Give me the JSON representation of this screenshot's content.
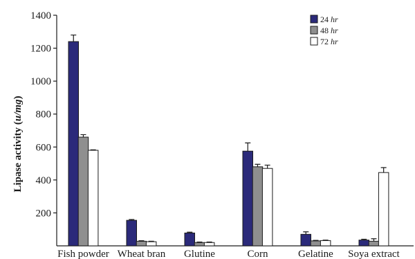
{
  "chart_data": {
    "type": "bar",
    "ylabel": "Lipase activity (u/mg)",
    "ylabel_plain": "Lipase activity (",
    "ylabel_unit": "u/mg",
    "ylabel_close": ")",
    "ylim": [
      0,
      1400
    ],
    "yticks": [
      "200",
      "400",
      "600",
      "800",
      "1000",
      "1200",
      "1400"
    ],
    "categories": [
      "Fish powder",
      "Wheat bran",
      "Glutine",
      "Corn",
      "Gelatine",
      "Soya extract"
    ],
    "series": [
      {
        "name": "24 hr",
        "name_num": "24",
        "name_unit": "hr",
        "color": "#2b2a7a",
        "values": [
          1240,
          155,
          78,
          575,
          70,
          35
        ],
        "errors": [
          40,
          5,
          5,
          50,
          15,
          5
        ]
      },
      {
        "name": "48 hr",
        "name_num": "48",
        "name_unit": "hr",
        "color": "#8f8f8f",
        "values": [
          660,
          28,
          20,
          480,
          30,
          28
        ],
        "errors": [
          15,
          3,
          3,
          15,
          3,
          15
        ]
      },
      {
        "name": "72 hr",
        "name_num": "72",
        "name_unit": "hr",
        "color": "#ffffff",
        "values": [
          580,
          25,
          20,
          470,
          32,
          445
        ],
        "errors": [
          3,
          3,
          3,
          20,
          3,
          30
        ]
      }
    ],
    "legend_position": "top-right",
    "grid": false
  }
}
